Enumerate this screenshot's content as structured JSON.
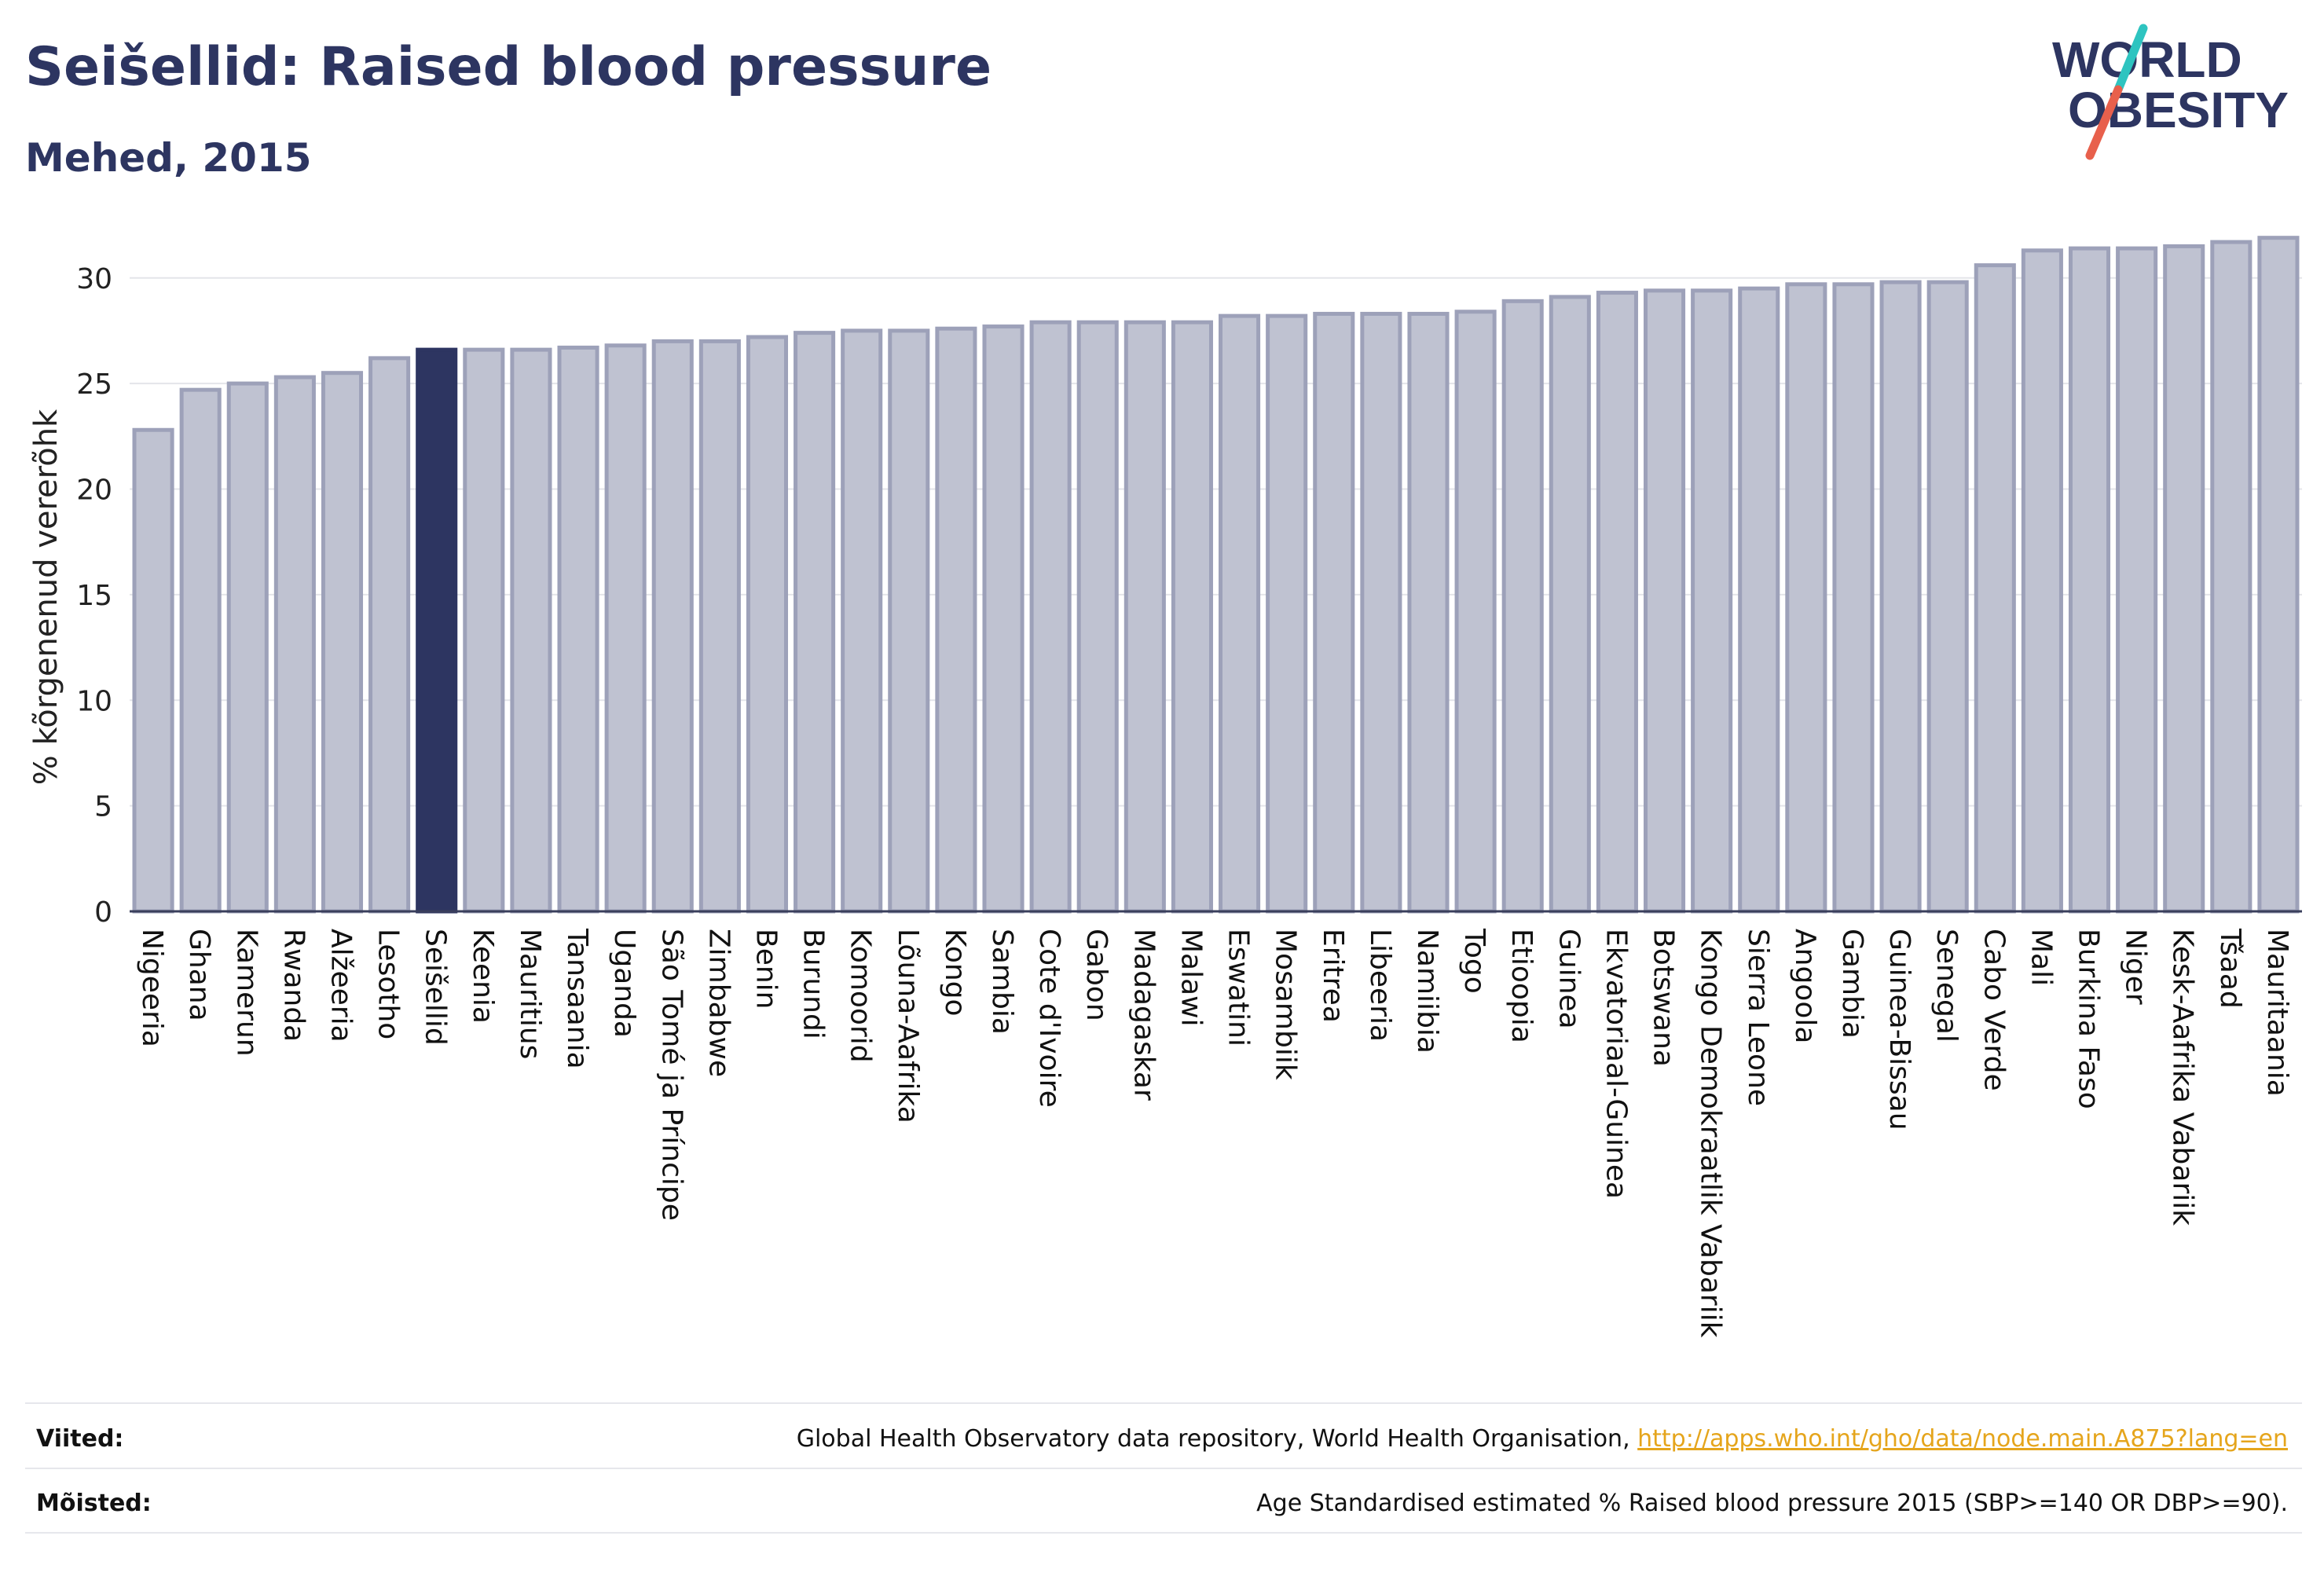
{
  "header": {
    "title": "Seišellid: Raised blood pressure",
    "subtitle": "Mehed, 2015"
  },
  "logo": {
    "line1": "WORLD",
    "line2": "OBESITY",
    "colors": {
      "text": "#2d3561",
      "slash_top": "#2ec4c0",
      "slash_bottom": "#e8604c"
    }
  },
  "chart_data": {
    "type": "bar",
    "ylabel": "% kõrgenenud vererõhk",
    "ylim": [
      0,
      32
    ],
    "yticks": [
      0,
      5,
      10,
      15,
      20,
      25,
      30
    ],
    "grid": true,
    "highlight": "Seišellid",
    "colors": {
      "bar": "#bfc2d1",
      "bar_edge": "#9da1b9",
      "highlight": "#2d3561"
    },
    "categories": [
      "Nigeeria",
      "Ghana",
      "Kamerun",
      "Rwanda",
      "Alžeeria",
      "Lesotho",
      "Seišellid",
      "Keenia",
      "Mauritius",
      "Tansaania",
      "Uganda",
      "São Tomé ja Príncipe",
      "Zimbabwe",
      "Benin",
      "Burundi",
      "Komoorid",
      "Lõuna-Aafrika",
      "Kongo",
      "Sambia",
      "Cote d'Ivoire",
      "Gabon",
      "Madagaskar",
      "Malawi",
      "Eswatini",
      "Mosambiik",
      "Eritrea",
      "Libeeria",
      "Namiibia",
      "Togo",
      "Etioopia",
      "Guinea",
      "Ekvatoriaal-Guinea",
      "Botswana",
      "Kongo Demokraatlik Vabariik",
      "Sierra Leone",
      "Angoola",
      "Gambia",
      "Guinea-Bissau",
      "Senegal",
      "Cabo Verde",
      "Mali",
      "Burkina Faso",
      "Niger",
      "Kesk-Aafrika Vabariik",
      "Tšaad",
      "Mauritaania"
    ],
    "values": [
      22.8,
      24.7,
      25.0,
      25.3,
      25.5,
      26.2,
      26.6,
      26.6,
      26.6,
      26.7,
      26.8,
      27.0,
      27.0,
      27.2,
      27.4,
      27.5,
      27.5,
      27.6,
      27.7,
      27.9,
      27.9,
      27.9,
      27.9,
      28.2,
      28.2,
      28.3,
      28.3,
      28.3,
      28.4,
      28.9,
      29.1,
      29.3,
      29.4,
      29.4,
      29.5,
      29.7,
      29.7,
      29.8,
      29.8,
      30.6,
      31.3,
      31.4,
      31.4,
      31.5,
      31.7,
      31.9
    ]
  },
  "footer": {
    "sources_label": "Viited:",
    "sources_text": "Global Health Observatory data repository, World Health Organisation, ",
    "sources_link": "http://apps.who.int/gho/data/node.main.A875?lang=en",
    "definitions_label": "Mõisted:",
    "definitions_text": "Age Standardised estimated % Raised blood pressure 2015 (SBP>=140 OR DBP>=90)."
  }
}
